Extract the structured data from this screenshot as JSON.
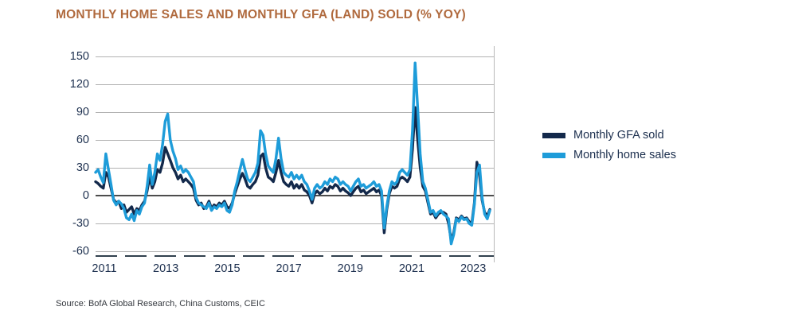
{
  "title": "MONTHLY HOME SALES AND MONTHLY GFA (LAND) SOLD (% YOY)",
  "source": "Source: BofA Global Research, China Customs, CEIC",
  "legend": {
    "items": [
      {
        "label": "Monthly GFA sold",
        "color": "#13294b"
      },
      {
        "label": "Monthly home sales",
        "color": "#1e9cd9"
      }
    ]
  },
  "colors": {
    "title": "#b06a3e",
    "axis_text": "#1c2f4e",
    "gridline": "#b2b2b2",
    "zero_line": "#4d4d4d",
    "gfa_navy": "#13294b",
    "home_sales_blue": "#1e9cd9"
  },
  "chart_data": {
    "type": "line",
    "title": "MONTHLY HOME SALES AND MONTHLY GFA (LAND) SOLD (% YOY)",
    "ylabel": "% YoY",
    "ylim": [
      -60,
      150
    ],
    "y_ticks": [
      150,
      120,
      90,
      60,
      30,
      0,
      -30,
      -60
    ],
    "x_tick_labels": [
      "2011",
      "2013",
      "2015",
      "2017",
      "2019",
      "2021",
      "2023"
    ],
    "x_range": "Oct 2010 - Jul 2023, monthly",
    "grid": "horizontal",
    "legend_position": "right",
    "series": [
      {
        "name": "Monthly GFA sold",
        "color": "#13294b",
        "values": [
          15,
          13,
          10,
          8,
          25,
          20,
          8,
          -4,
          -8,
          -6,
          -14,
          -10,
          -18,
          -15,
          -12,
          -20,
          -14,
          -16,
          -10,
          -6,
          5,
          20,
          8,
          15,
          28,
          25,
          35,
          52,
          45,
          38,
          30,
          25,
          18,
          22,
          15,
          18,
          15,
          12,
          8,
          -5,
          -10,
          -8,
          -14,
          -12,
          -6,
          -14,
          -10,
          -12,
          -8,
          -10,
          -6,
          -12,
          -14,
          -8,
          2,
          10,
          18,
          24,
          18,
          10,
          8,
          12,
          15,
          22,
          42,
          45,
          30,
          20,
          18,
          15,
          25,
          38,
          25,
          15,
          12,
          10,
          15,
          8,
          12,
          8,
          12,
          6,
          4,
          0,
          -8,
          2,
          5,
          2,
          4,
          8,
          5,
          10,
          8,
          12,
          10,
          5,
          8,
          5,
          3,
          0,
          4,
          8,
          10,
          4,
          6,
          2,
          4,
          6,
          8,
          4,
          6,
          0,
          -40,
          -15,
          2,
          10,
          8,
          10,
          18,
          20,
          18,
          15,
          20,
          50,
          95,
          60,
          30,
          10,
          5,
          -8,
          -20,
          -18,
          -24,
          -20,
          -18,
          -18,
          -20,
          -30,
          -48,
          -40,
          -24,
          -26,
          -22,
          -25,
          -24,
          -28,
          -30,
          -8,
          36,
          22,
          -5,
          -18,
          -22,
          -15
        ]
      },
      {
        "name": "Monthly home sales",
        "color": "#1e9cd9",
        "values": [
          25,
          28,
          20,
          14,
          45,
          28,
          12,
          -5,
          -10,
          -6,
          -9,
          -14,
          -24,
          -26,
          -20,
          -27,
          -16,
          -20,
          -12,
          -8,
          10,
          33,
          12,
          25,
          45,
          38,
          55,
          80,
          88,
          60,
          48,
          40,
          28,
          32,
          25,
          28,
          25,
          20,
          15,
          -2,
          -8,
          -10,
          -12,
          -14,
          -8,
          -16,
          -12,
          -14,
          -10,
          -12,
          -8,
          -16,
          -18,
          -10,
          5,
          15,
          28,
          39,
          28,
          18,
          15,
          20,
          25,
          35,
          70,
          65,
          45,
          32,
          28,
          25,
          40,
          62,
          40,
          25,
          22,
          20,
          25,
          18,
          22,
          18,
          22,
          15,
          12,
          5,
          -4,
          8,
          12,
          8,
          10,
          15,
          12,
          18,
          15,
          20,
          18,
          12,
          15,
          12,
          10,
          5,
          10,
          15,
          18,
          10,
          12,
          8,
          10,
          12,
          15,
          10,
          12,
          5,
          -35,
          -12,
          5,
          15,
          12,
          15,
          25,
          28,
          25,
          22,
          28,
          70,
          143,
          95,
          45,
          15,
          8,
          -5,
          -18,
          -16,
          -22,
          -18,
          -16,
          -20,
          -22,
          -25,
          -52,
          -42,
          -25,
          -28,
          -23,
          -26,
          -25,
          -30,
          -32,
          -10,
          25,
          33,
          -2,
          -20,
          -25,
          -16
        ]
      }
    ]
  }
}
